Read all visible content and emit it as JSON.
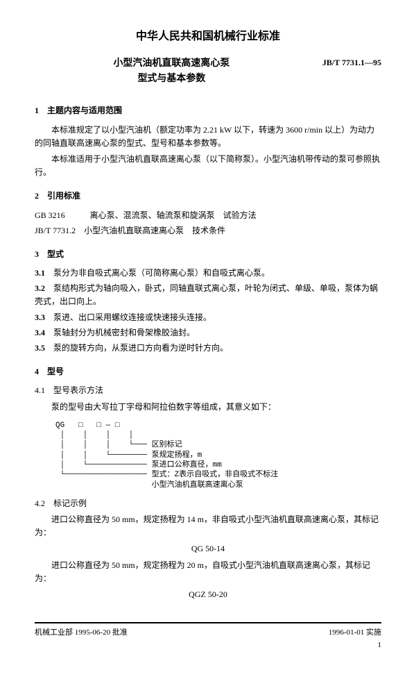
{
  "header": {
    "mainTitle": "中华人民共和国机械行业标准",
    "subTitle1": "小型汽油机直联高速离心泵",
    "subTitle2": "型式与基本参数",
    "standardCode": "JB/T 7731.1—95"
  },
  "section1": {
    "title": "1　主题内容与适用范围",
    "para1": "本标准规定了以小型汽油机（额定功率为 2.21 kW 以下，转速为 3600 r/min 以上）为动力的同轴直联高速离心泵的型式、型号和基本参数等。",
    "para2": "本标准适用于小型汽油机直联高速离心泵（以下简称泵）。小型汽油机带传动的泵可参照执行。"
  },
  "section2": {
    "title": "2　引用标准",
    "ref1": "GB 3216　　　离心泵、混流泵、轴流泵和旋涡泵　试验方法",
    "ref2": "JB/T 7731.2　小型汽油机直联高速离心泵　技术条件"
  },
  "section3": {
    "title": "3　型式",
    "c1": "泵分为非自吸式离心泵（可简称离心泵）和自吸式离心泵。",
    "c2": "泵结构形式为轴向吸入，卧式，同轴直联式离心泵，叶轮为闭式、单级、单吸，泵体为蜗壳式，出口向上。",
    "c3": "泵进、出口采用螺纹连接或快速接头连接。",
    "c4": "泵轴封分为机械密封和骨架橡胶油封。",
    "c5": "泵的旋转方向，从泵进口方向看为逆时针方向。"
  },
  "section4": {
    "title": "4　型号",
    "sub41": "4.1　型号表示方法",
    "para41": "泵的型号由大写拉丁字母和阿拉伯数字等组成，其意义如下：",
    "diagram": "QG   □   □ — □\n │    │    │    │\n │    │    │    └─── 区别标记\n │    │    └──────── 泵规定扬程，m\n │    └───────────── 泵进口公称直径，mm\n └────────────────── 型式：Z表示自吸式，非自吸式不标注\n                     小型汽油机直联高速离心泵",
    "sub42": "4.2　标记示例",
    "ex1": "进口公称直径为 50 mm，规定扬程为 14 m，非自吸式小型汽油机直联高速离心泵，其标记为：",
    "ex1code": "QG 50-14",
    "ex2": "进口公称直径为 50 mm，规定扬程为 20 m，自吸式小型汽油机直联高速离心泵，其标记为：",
    "ex2code": "QGZ 50-20"
  },
  "footer": {
    "left": "机械工业部 1995-06-20 批准",
    "right": "1996-01-01 实施",
    "pageNum": "1"
  }
}
